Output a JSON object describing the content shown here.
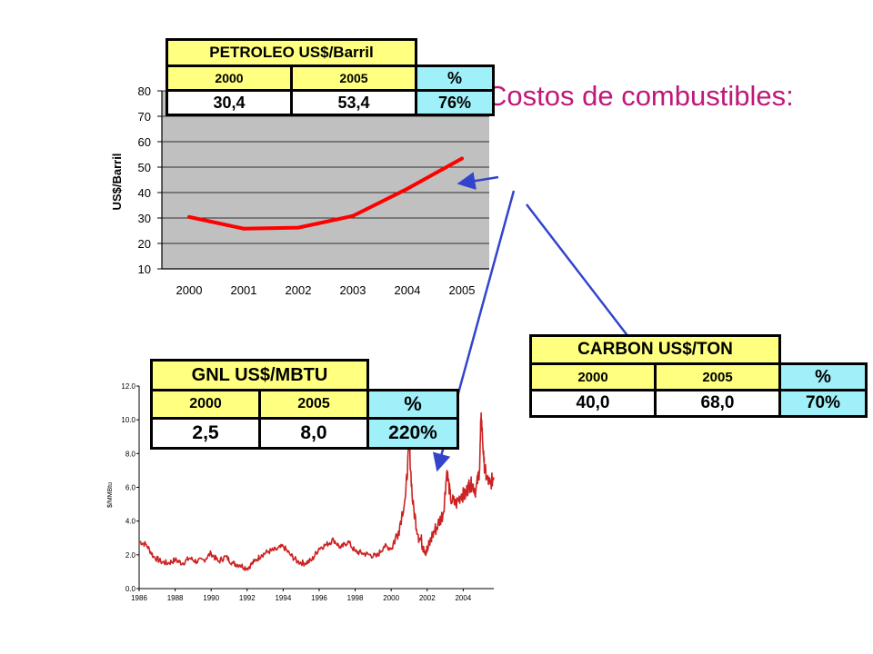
{
  "heading": "Costos de combustibles:",
  "petroleo": {
    "title": "PETROLEO US$/Barril",
    "col1": "2000",
    "col2": "2005",
    "pct_label": "%",
    "v1": "30,4",
    "v2": "53,4",
    "pct": "76%"
  },
  "carbon": {
    "title": "CARBON US$/TON",
    "col1": "2000",
    "col2": "2005",
    "pct_label": "%",
    "v1": "40,0",
    "v2": "68,0",
    "pct": "70%"
  },
  "gnl": {
    "title": "GNL US$/MBTU",
    "col1": "2000",
    "col2": "2005",
    "pct_label": "%",
    "v1": "2,5",
    "v2": "8,0",
    "pct": "220%"
  },
  "colors": {
    "accent": "#c0187a",
    "oil_line": "#ff0000",
    "gas_line": "#cc2222",
    "arrow": "#3344cc",
    "plot_bg": "#c0c0c0"
  },
  "chart_data": [
    {
      "type": "line",
      "ylabel": "US$/Barril",
      "x": [
        "2000",
        "2001",
        "2002",
        "2003",
        "2004",
        "2005"
      ],
      "series": [
        {
          "values": [
            30.4,
            25.8,
            26.2,
            30.8,
            41.5,
            53.4
          ]
        }
      ],
      "yticks": [
        10,
        20,
        30,
        40,
        50,
        60,
        70,
        80
      ],
      "ylim": [
        10,
        80
      ],
      "grid": true
    },
    {
      "type": "line",
      "ylabel": "$/MMBtu",
      "xticks": [
        "1986",
        "1988",
        "1990",
        "1992",
        "1994",
        "1996",
        "1998",
        "2000",
        "2002",
        "2004"
      ],
      "yticks": [
        "0.0",
        "2.0",
        "4.0",
        "6.0",
        "8.0",
        "10.0",
        "12.0"
      ],
      "xlim": [
        1986,
        2005.7
      ],
      "ylim": [
        0,
        12
      ],
      "series": [
        {
          "points": [
            [
              1986.0,
              2.8
            ],
            [
              1986.4,
              2.6
            ],
            [
              1986.8,
              1.9
            ],
            [
              1987.2,
              1.6
            ],
            [
              1987.6,
              1.5
            ],
            [
              1988.0,
              1.7
            ],
            [
              1988.4,
              1.5
            ],
            [
              1988.8,
              1.8
            ],
            [
              1989.2,
              1.6
            ],
            [
              1989.6,
              1.7
            ],
            [
              1990.0,
              2.1
            ],
            [
              1990.4,
              1.6
            ],
            [
              1990.8,
              1.9
            ],
            [
              1991.2,
              1.5
            ],
            [
              1991.6,
              1.4
            ],
            [
              1992.0,
              1.2
            ],
            [
              1992.4,
              1.6
            ],
            [
              1992.8,
              2.0
            ],
            [
              1993.2,
              2.2
            ],
            [
              1993.6,
              2.3
            ],
            [
              1994.0,
              2.5
            ],
            [
              1994.4,
              2.0
            ],
            [
              1994.8,
              1.6
            ],
            [
              1995.2,
              1.5
            ],
            [
              1995.6,
              1.7
            ],
            [
              1996.0,
              2.4
            ],
            [
              1996.4,
              2.6
            ],
            [
              1996.8,
              2.9
            ],
            [
              1997.2,
              2.4
            ],
            [
              1997.6,
              2.8
            ],
            [
              1998.0,
              2.2
            ],
            [
              1998.4,
              2.1
            ],
            [
              1998.8,
              2.0
            ],
            [
              1999.2,
              1.9
            ],
            [
              1999.6,
              2.5
            ],
            [
              2000.0,
              2.4
            ],
            [
              2000.4,
              3.4
            ],
            [
              2000.8,
              5.5
            ],
            [
              2001.0,
              8.6
            ],
            [
              2001.2,
              5.0
            ],
            [
              2001.5,
              3.2
            ],
            [
              2001.8,
              2.5
            ],
            [
              2002.0,
              2.2
            ],
            [
              2002.3,
              3.2
            ],
            [
              2002.6,
              3.8
            ],
            [
              2002.9,
              4.5
            ],
            [
              2003.1,
              7.0
            ],
            [
              2003.3,
              5.3
            ],
            [
              2003.6,
              5.0
            ],
            [
              2003.9,
              5.6
            ],
            [
              2004.1,
              5.5
            ],
            [
              2004.3,
              6.1
            ],
            [
              2004.5,
              6.2
            ],
            [
              2004.7,
              5.8
            ],
            [
              2004.9,
              7.0
            ],
            [
              2005.0,
              10.4
            ],
            [
              2005.15,
              7.5
            ],
            [
              2005.3,
              6.5
            ],
            [
              2005.5,
              6.2
            ],
            [
              2005.7,
              6.6
            ]
          ]
        }
      ]
    }
  ]
}
